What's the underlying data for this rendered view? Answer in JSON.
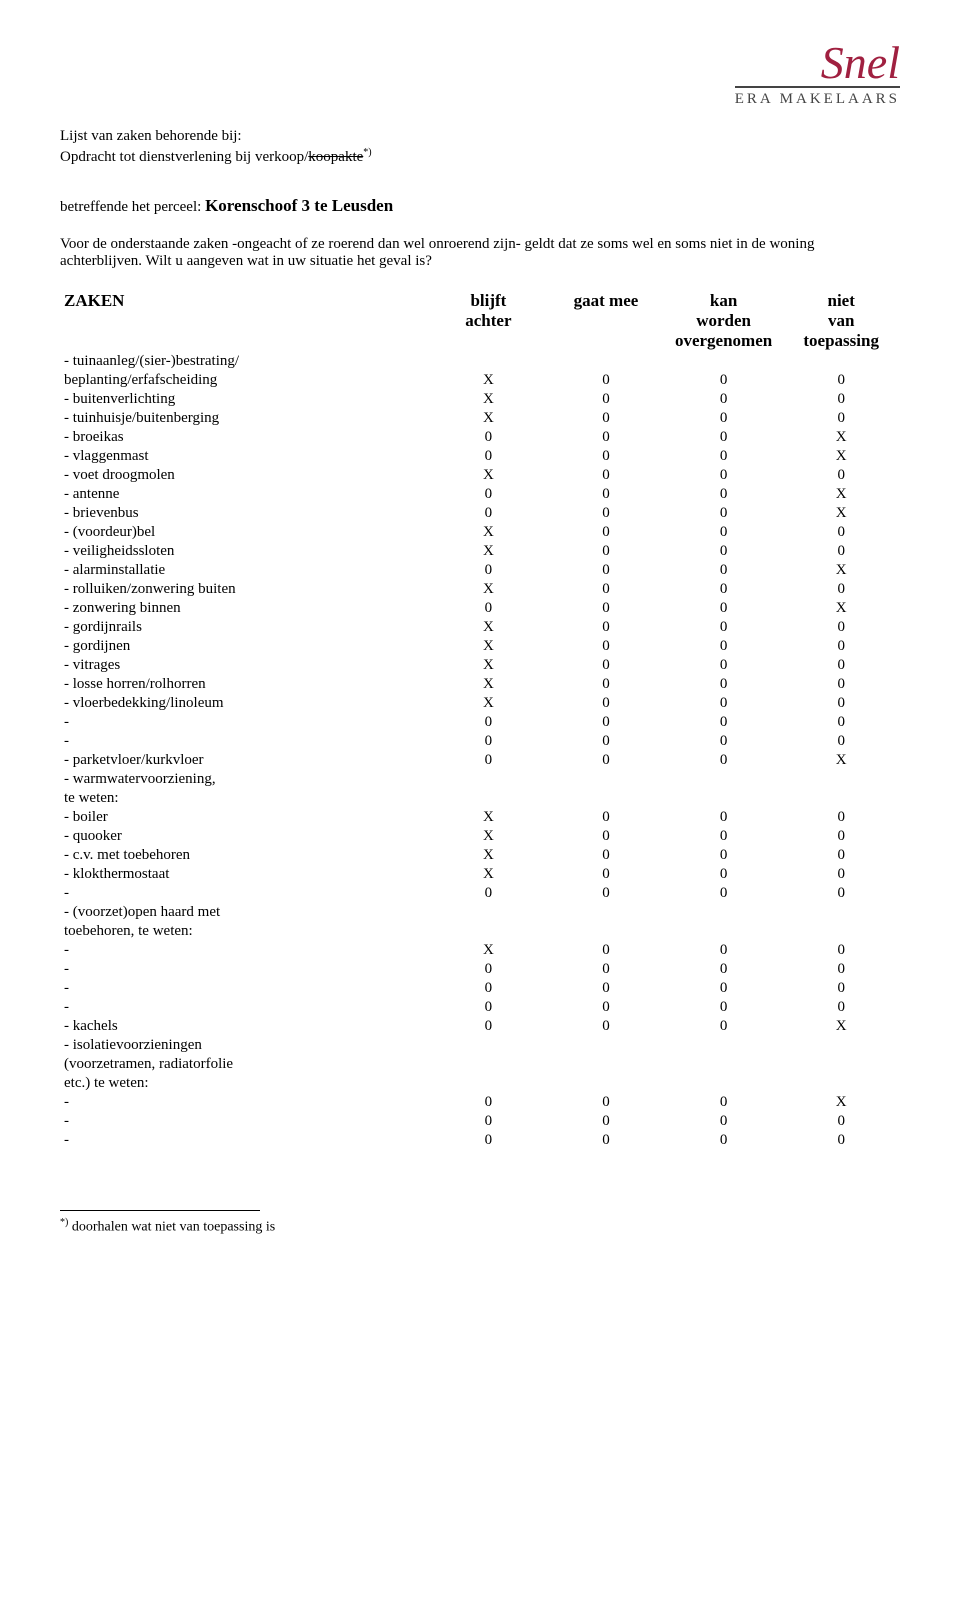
{
  "logo": {
    "name": "Snel",
    "subtitle": "ERA MAKELAARS"
  },
  "intro": {
    "line1": "Lijst van zaken behorende bij:",
    "line2_a": "Opdracht tot dienstverlening bij verkoop/",
    "line2_strike": "koopakte",
    "line2_sup": "*)",
    "perceel_prefix": "betreffende het perceel: ",
    "perceel": "Korenschoof 3 te Leusden",
    "body": "Voor de onderstaande zaken -ongeacht of ze roerend dan wel onroerend zijn- geldt dat ze soms wel en soms niet in de woning achterblijven. Wilt u aangeven wat in uw situatie het geval is?"
  },
  "headers": {
    "c0": "ZAKEN",
    "c1a": "blijft",
    "c1b": "achter",
    "c2a": "gaat mee",
    "c2b": "",
    "c3a": "kan",
    "c3b": "worden",
    "c3c": "overgenomen",
    "c4a": "niet",
    "c4b": "van",
    "c4c": "toepassing"
  },
  "rows": [
    {
      "label": "- tuinaanleg/(sier-)bestrating/",
      "noValues": true
    },
    {
      "label": "beplanting/erfafscheiding",
      "indent": 1,
      "v": [
        "X",
        "0",
        "0",
        "0"
      ]
    },
    {
      "label": "- buitenverlichting",
      "v": [
        "X",
        "0",
        "0",
        "0"
      ]
    },
    {
      "label": "- tuinhuisje/buitenberging",
      "v": [
        "X",
        "0",
        "0",
        "0"
      ]
    },
    {
      "label": "- broeikas",
      "v": [
        "0",
        "0",
        "0",
        "X"
      ]
    },
    {
      "label": "- vlaggenmast",
      "v": [
        "0",
        "0",
        "0",
        "X"
      ]
    },
    {
      "label": "- voet droogmolen",
      "v": [
        "X",
        "0",
        "0",
        "0"
      ]
    },
    {
      "label": "- antenne",
      "v": [
        "0",
        "0",
        "0",
        "X"
      ]
    },
    {
      "label": "- brievenbus",
      "v": [
        "0",
        "0",
        "0",
        "X"
      ]
    },
    {
      "label": "- (voordeur)bel",
      "v": [
        "X",
        "0",
        "0",
        "0"
      ]
    },
    {
      "label": "- veiligheidssloten",
      "v": [
        "X",
        "0",
        "0",
        "0"
      ]
    },
    {
      "label": "- alarminstallatie",
      "v": [
        "0",
        "0",
        "0",
        "X"
      ]
    },
    {
      "label": "- rolluiken/zonwering buiten",
      "v": [
        "X",
        "0",
        "0",
        "0"
      ]
    },
    {
      "label": "- zonwering binnen",
      "v": [
        "0",
        "0",
        "0",
        "X"
      ]
    },
    {
      "label": "- gordijnrails",
      "v": [
        "X",
        "0",
        "0",
        "0"
      ]
    },
    {
      "label": "- gordijnen",
      "v": [
        "X",
        "0",
        "0",
        "0"
      ]
    },
    {
      "label": "- vitrages",
      "v": [
        "X",
        "0",
        "0",
        "0"
      ]
    },
    {
      "label": "- losse horren/rolhorren",
      "v": [
        "X",
        "0",
        "0",
        "0"
      ]
    },
    {
      "label": "- vloerbedekking/linoleum",
      "v": [
        "X",
        "0",
        "0",
        "0"
      ]
    },
    {
      "label": "-",
      "indent": 2,
      "v": [
        "0",
        "0",
        "0",
        "0"
      ]
    },
    {
      "label": "-",
      "indent": 2,
      "v": [
        "0",
        "0",
        "0",
        "0"
      ]
    },
    {
      "label": "- parketvloer/kurkvloer",
      "v": [
        "0",
        "0",
        "0",
        "X"
      ]
    },
    {
      "label": "- warmwatervoorziening,",
      "noValues": true
    },
    {
      "label": "te weten:",
      "indent": 1,
      "noValues": true
    },
    {
      "label": "- boiler",
      "indent": 2,
      "v": [
        "X",
        "0",
        "0",
        "0"
      ]
    },
    {
      "label": "- quooker",
      "indent": 2,
      "v": [
        "X",
        "0",
        "0",
        "0"
      ]
    },
    {
      "label": "- c.v. met toebehoren",
      "v": [
        "X",
        "0",
        "0",
        "0"
      ]
    },
    {
      "label": "- klokthermostaat",
      "v": [
        "X",
        "0",
        "0",
        "0"
      ]
    },
    {
      "label": "-",
      "v": [
        "0",
        "0",
        "0",
        "0"
      ]
    },
    {
      "label": "- (voorzet)open haard met",
      "noValues": true
    },
    {
      "label": "toebehoren, te weten:",
      "indent": 1,
      "noValues": true
    },
    {
      "label": "-",
      "indent": 2,
      "v": [
        "X",
        "0",
        "0",
        "0"
      ]
    },
    {
      "label": "-",
      "indent": 2,
      "v": [
        "0",
        "0",
        "0",
        "0"
      ]
    },
    {
      "label": "-",
      "indent": 2,
      "v": [
        "0",
        "0",
        "0",
        "0"
      ]
    },
    {
      "label": "-",
      "indent": 2,
      "v": [
        "0",
        "0",
        "0",
        "0"
      ]
    },
    {
      "label": "- kachels",
      "v": [
        "0",
        "0",
        "0",
        "X"
      ]
    },
    {
      "label": "- isolatievoorzieningen",
      "noValues": true
    },
    {
      "label": "(voorzetramen, radiatorfolie",
      "indent": 1,
      "noValues": true
    },
    {
      "label": "etc.) te weten:",
      "indent": 1,
      "noValues": true
    },
    {
      "label": "-",
      "indent": 2,
      "v": [
        "0",
        "0",
        "0",
        "X"
      ]
    },
    {
      "label": "-",
      "indent": 2,
      "v": [
        "0",
        "0",
        "0",
        "0"
      ]
    },
    {
      "label": "-",
      "indent": 2,
      "v": [
        "0",
        "0",
        "0",
        "0"
      ]
    }
  ],
  "footnote": {
    "sup": "*)",
    "text": " doorhalen wat niet van toepassing is"
  }
}
